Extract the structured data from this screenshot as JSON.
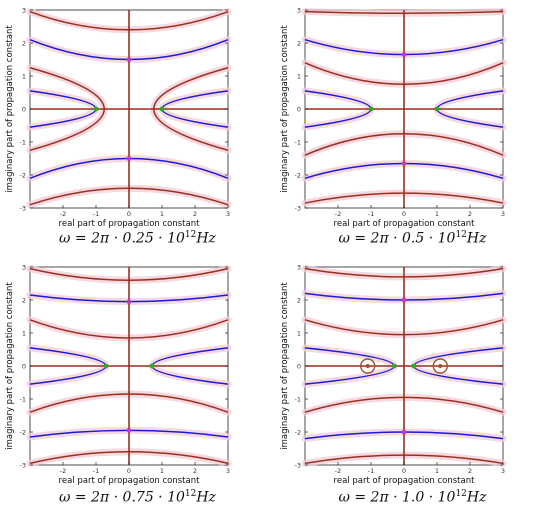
{
  "colors": {
    "blue": "#1a1ad8",
    "brown": "#9b2f1f",
    "green": "#22b022",
    "magenta": "#c23cc6",
    "glow": "#f3cbd6",
    "orange": "#a0522d"
  },
  "chart_data": [
    {
      "type": "line",
      "xlabel": "real part of propagation constant",
      "ylabel": "imaginary part of propagation constant",
      "xlim": [
        -3,
        3
      ],
      "ylim": [
        -3,
        3
      ],
      "xticks": [
        "-2",
        "-1",
        "0",
        "1",
        "2",
        "3"
      ],
      "yticks": [
        "-3",
        "-2",
        "-1",
        "0",
        "1",
        "2",
        "3"
      ],
      "caption": {
        "pre": "ω = 2π · 0.25 · 10",
        "exp": "12",
        "unit": "Hz"
      },
      "series": [
        {
          "color": "blue",
          "kind": "bump",
          "points": [
            [
              -3,
              2.1
            ],
            [
              0,
              1.5
            ],
            [
              3,
              2.1
            ]
          ]
        },
        {
          "color": "blue",
          "kind": "bump",
          "points": [
            [
              -3,
              -2.1
            ],
            [
              0,
              -1.5
            ],
            [
              3,
              -2.1
            ]
          ]
        },
        {
          "color": "brown",
          "kind": "bump",
          "points": [
            [
              -3,
              2.95
            ],
            [
              0,
              2.4
            ],
            [
              3,
              2.95
            ]
          ]
        },
        {
          "color": "brown",
          "kind": "bump",
          "points": [
            [
              -3,
              -2.9
            ],
            [
              0,
              -2.4
            ],
            [
              3,
              -2.9
            ]
          ]
        },
        {
          "color": "blue",
          "kind": "branch",
          "points": [
            [
              -3,
              0.55
            ],
            [
              -1.0,
              0.0
            ],
            [
              -3,
              -0.55
            ]
          ]
        },
        {
          "color": "blue",
          "kind": "branch",
          "points": [
            [
              3,
              0.55
            ],
            [
              1.0,
              0.0
            ],
            [
              3,
              -0.55
            ]
          ]
        },
        {
          "color": "brown",
          "kind": "branch",
          "points": [
            [
              -3,
              1.25
            ],
            [
              -0.75,
              0.0
            ],
            [
              -3,
              -1.25
            ]
          ]
        },
        {
          "color": "brown",
          "kind": "branch",
          "points": [
            [
              3,
              1.25
            ],
            [
              0.75,
              0.0
            ],
            [
              3,
              -1.25
            ]
          ]
        }
      ],
      "green_points": [
        [
          -1.0,
          0.0
        ],
        [
          1.0,
          0.0
        ]
      ],
      "magenta_points": [
        [
          0,
          1.5
        ],
        [
          0,
          -1.5
        ]
      ],
      "circles": []
    },
    {
      "type": "line",
      "xlabel": "real part of propagation constant",
      "ylabel": "imaginary part of propagation constant",
      "xlim": [
        -3,
        3
      ],
      "ylim": [
        -3,
        3
      ],
      "xticks": [
        "-2",
        "-1",
        "0",
        "1",
        "2",
        "3"
      ],
      "yticks": [
        "-3",
        "-2",
        "-1",
        "0",
        "1",
        "2",
        "3"
      ],
      "caption": {
        "pre": "ω = 2π · 0.5 · 10",
        "exp": "12",
        "unit": "Hz"
      },
      "series": [
        {
          "color": "blue",
          "kind": "bump",
          "points": [
            [
              -3,
              2.1
            ],
            [
              0,
              1.65
            ],
            [
              3,
              2.1
            ]
          ]
        },
        {
          "color": "blue",
          "kind": "bump",
          "points": [
            [
              -3,
              -2.1
            ],
            [
              0,
              -1.65
            ],
            [
              3,
              -2.1
            ]
          ]
        },
        {
          "color": "brown",
          "kind": "bump",
          "points": [
            [
              -3,
              2.95
            ],
            [
              0,
              2.9
            ],
            [
              3,
              2.95
            ]
          ]
        },
        {
          "color": "brown",
          "kind": "bump",
          "points": [
            [
              -3,
              1.4
            ],
            [
              0,
              0.75
            ],
            [
              3,
              1.4
            ]
          ]
        },
        {
          "color": "brown",
          "kind": "bump",
          "points": [
            [
              -3,
              -1.4
            ],
            [
              0,
              -0.75
            ],
            [
              3,
              -1.4
            ]
          ]
        },
        {
          "color": "brown",
          "kind": "bump",
          "points": [
            [
              -3,
              -2.85
            ],
            [
              0,
              -2.55
            ],
            [
              3,
              -2.85
            ]
          ]
        },
        {
          "color": "blue",
          "kind": "branch",
          "points": [
            [
              -3,
              0.55
            ],
            [
              -1.0,
              0.0
            ],
            [
              -3,
              -0.55
            ]
          ]
        },
        {
          "color": "blue",
          "kind": "branch",
          "points": [
            [
              3,
              0.55
            ],
            [
              1.0,
              0.0
            ],
            [
              3,
              -0.55
            ]
          ]
        }
      ],
      "green_points": [
        [
          -1.0,
          0.0
        ],
        [
          1.0,
          0.0
        ]
      ],
      "magenta_points": [
        [
          0,
          1.65
        ],
        [
          0,
          -1.65
        ]
      ],
      "circles": []
    },
    {
      "type": "line",
      "xlabel": "real part of propagation constant",
      "ylabel": "imaginary part of propagation constant",
      "xlim": [
        -3,
        3
      ],
      "ylim": [
        -3,
        3
      ],
      "xticks": [
        "-2",
        "-1",
        "0",
        "1",
        "2",
        "3"
      ],
      "yticks": [
        "-3",
        "-2",
        "-1",
        "0",
        "1",
        "2",
        "3"
      ],
      "caption": {
        "pre": "ω = 2π · 0.75 · 10",
        "exp": "12",
        "unit": "Hz"
      },
      "series": [
        {
          "color": "blue",
          "kind": "bump",
          "points": [
            [
              -3,
              2.15
            ],
            [
              0,
              1.95
            ],
            [
              3,
              2.15
            ]
          ]
        },
        {
          "color": "blue",
          "kind": "bump",
          "points": [
            [
              -3,
              -2.15
            ],
            [
              0,
              -1.95
            ],
            [
              3,
              -2.15
            ]
          ]
        },
        {
          "color": "brown",
          "kind": "bump",
          "points": [
            [
              -3,
              2.95
            ],
            [
              0,
              2.6
            ],
            [
              3,
              2.95
            ]
          ]
        },
        {
          "color": "brown",
          "kind": "bump",
          "points": [
            [
              -3,
              1.4
            ],
            [
              0,
              0.85
            ],
            [
              3,
              1.4
            ]
          ]
        },
        {
          "color": "brown",
          "kind": "bump",
          "points": [
            [
              -3,
              -1.4
            ],
            [
              0,
              -0.85
            ],
            [
              3,
              -1.4
            ]
          ]
        },
        {
          "color": "brown",
          "kind": "bump",
          "points": [
            [
              -3,
              -2.95
            ],
            [
              0,
              -2.6
            ],
            [
              3,
              -2.95
            ]
          ]
        },
        {
          "color": "blue",
          "kind": "branch",
          "points": [
            [
              -3,
              0.55
            ],
            [
              -0.7,
              0.0
            ],
            [
              -3,
              -0.55
            ]
          ]
        },
        {
          "color": "blue",
          "kind": "branch",
          "points": [
            [
              3,
              0.55
            ],
            [
              0.7,
              0.0
            ],
            [
              3,
              -0.55
            ]
          ]
        }
      ],
      "green_points": [
        [
          -0.7,
          0.0
        ],
        [
          0.7,
          0.0
        ]
      ],
      "magenta_points": [
        [
          0,
          1.95
        ],
        [
          0,
          -1.95
        ]
      ],
      "circles": []
    },
    {
      "type": "line",
      "xlabel": "real part of propagation constant",
      "ylabel": "imaginary part of propagation constant",
      "xlim": [
        -3,
        3
      ],
      "ylim": [
        -3,
        3
      ],
      "xticks": [
        "-2",
        "-1",
        "0",
        "1",
        "2",
        "3"
      ],
      "yticks": [
        "-3",
        "-2",
        "-1",
        "0",
        "1",
        "2",
        "3"
      ],
      "caption": {
        "pre": "ω = 2π · 1.0 · 10",
        "exp": "12",
        "unit": "Hz"
      },
      "series": [
        {
          "color": "blue",
          "kind": "bump",
          "points": [
            [
              -3,
              2.2
            ],
            [
              0,
              2.0
            ],
            [
              3,
              2.2
            ]
          ]
        },
        {
          "color": "blue",
          "kind": "bump",
          "points": [
            [
              -3,
              -2.2
            ],
            [
              0,
              -2.0
            ],
            [
              3,
              -2.2
            ]
          ]
        },
        {
          "color": "brown",
          "kind": "bump",
          "points": [
            [
              -3,
              2.95
            ],
            [
              0,
              2.7
            ],
            [
              3,
              2.95
            ]
          ]
        },
        {
          "color": "brown",
          "kind": "bump",
          "points": [
            [
              -3,
              1.4
            ],
            [
              0,
              0.95
            ],
            [
              3,
              1.4
            ]
          ]
        },
        {
          "color": "brown",
          "kind": "bump",
          "points": [
            [
              -3,
              -1.4
            ],
            [
              0,
              -0.95
            ],
            [
              3,
              -1.4
            ]
          ]
        },
        {
          "color": "brown",
          "kind": "bump",
          "points": [
            [
              -3,
              -2.95
            ],
            [
              0,
              -2.7
            ],
            [
              3,
              -2.95
            ]
          ]
        },
        {
          "color": "blue",
          "kind": "branch",
          "points": [
            [
              -3,
              0.55
            ],
            [
              -0.3,
              0.0
            ],
            [
              -3,
              -0.55
            ]
          ]
        },
        {
          "color": "blue",
          "kind": "branch",
          "points": [
            [
              3,
              0.55
            ],
            [
              0.3,
              0.0
            ],
            [
              3,
              -0.55
            ]
          ]
        }
      ],
      "green_points": [
        [
          -0.3,
          0.0
        ],
        [
          0.3,
          0.0
        ]
      ],
      "magenta_points": [
        [
          0,
          2.0
        ],
        [
          0,
          -2.0
        ]
      ],
      "circles": [
        [
          -1.1,
          0.0
        ],
        [
          1.1,
          0.0
        ]
      ]
    }
  ]
}
